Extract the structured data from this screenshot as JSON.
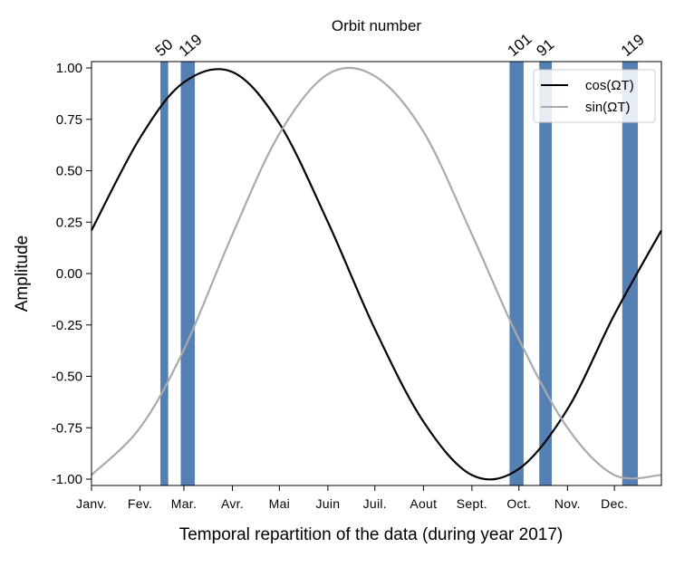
{
  "chart_data": {
    "type": "line",
    "title": "Orbit number",
    "xlabel": "Temporal repartition of the data (during year 2017)",
    "ylabel": "Amplitude",
    "ylim": [
      -1.0,
      1.0
    ],
    "xlim": [
      1,
      365
    ],
    "y_ticks": [
      "1.00",
      "0.75",
      "0.50",
      "0.25",
      "0.00",
      "-0.25",
      "-0.50",
      "-0.75",
      "-1.00"
    ],
    "y_tick_values": [
      1.0,
      0.75,
      0.5,
      0.25,
      0.0,
      -0.25,
      -0.5,
      -0.75,
      -1.0
    ],
    "x_ticks": [
      "Janv.",
      "Fev.",
      "Mar.",
      "Avr.",
      "Mai",
      "Juin",
      "Juil.",
      "Aout",
      "Sept.",
      "Oct.",
      "Nov.",
      "Dec."
    ],
    "x_tick_days": [
      1,
      32,
      60,
      91,
      121,
      152,
      182,
      213,
      244,
      274,
      305,
      335
    ],
    "series": [
      {
        "name": "cos(ΩT)",
        "color": "#000000",
        "x": [
          1,
          32,
          60,
          91,
          121,
          152,
          182,
          213,
          244,
          274,
          305,
          335,
          365
        ],
        "y": [
          0.21,
          0.66,
          0.93,
          0.98,
          0.73,
          0.25,
          -0.27,
          -0.72,
          -0.98,
          -0.95,
          -0.66,
          -0.2,
          0.21
        ]
      },
      {
        "name": "sin(ΩT)",
        "color": "#aaaaaa",
        "x": [
          1,
          32,
          60,
          91,
          121,
          152,
          182,
          213,
          244,
          274,
          305,
          335,
          365
        ],
        "y": [
          -0.98,
          -0.75,
          -0.37,
          0.19,
          0.68,
          0.97,
          0.96,
          0.69,
          0.19,
          -0.32,
          -0.75,
          -0.98,
          -0.98
        ]
      }
    ],
    "orbit_bands": {
      "color": "#5580b4",
      "items": [
        {
          "label": "50",
          "start_day": 45,
          "end_day": 50
        },
        {
          "label": "119",
          "start_day": 58,
          "end_day": 67
        },
        {
          "label": "101",
          "start_day": 268,
          "end_day": 277
        },
        {
          "label": "91",
          "start_day": 287,
          "end_day": 295
        },
        {
          "label": "119",
          "start_day": 340,
          "end_day": 350
        }
      ]
    },
    "legend_position": "top-right",
    "grid": false
  }
}
